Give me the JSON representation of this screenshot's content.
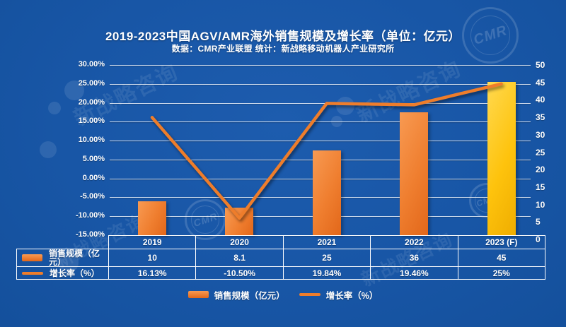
{
  "header": {
    "title": "2019-2023中国AGV/AMR海外销售规模及增长率（单位：亿元）",
    "subtitle": "数据：CMR产业联盟    统计：新战略移动机器人产业研究所"
  },
  "chart_data": {
    "type": "bar",
    "subtype": "combo-bar-line",
    "title": "2019-2023中国AGV/AMR海外销售规模及增长率（单位：亿元）",
    "categories": [
      "2019",
      "2020",
      "2021",
      "2022",
      "2023 (F)"
    ],
    "series": [
      {
        "name": "销售规模（亿元）",
        "type": "bar",
        "axis": "right",
        "values": [
          10,
          8.1,
          25,
          36,
          45
        ],
        "color": "#ED7D31",
        "colors": [
          "#ED7D31",
          "#ED7D31",
          "#ED7D31",
          "#ED7D31",
          "#FFC408"
        ]
      },
      {
        "name": "增长率（%）",
        "type": "line",
        "axis": "left",
        "values": [
          16.13,
          -10.5,
          19.84,
          19.46,
          25
        ],
        "color": "#ED7D31"
      }
    ],
    "left_axis": {
      "min": -15,
      "max": 30,
      "step": 5,
      "ticks": [
        "30.00%",
        "25.00%",
        "20.00%",
        "15.00%",
        "10.00%",
        "5.00%",
        "0.00%",
        "-5.00%",
        "-10.00%",
        "-15.00%"
      ]
    },
    "right_axis": {
      "min": 0,
      "max": 50,
      "step": 5,
      "ticks": [
        "50",
        "45",
        "40",
        "35",
        "30",
        "25",
        "20",
        "15",
        "10",
        "5",
        "0"
      ]
    },
    "grid": true,
    "legend_position": "bottom"
  },
  "table": {
    "years": [
      "2019",
      "2020",
      "2021",
      "2022",
      "2023 (F)"
    ],
    "rows": [
      {
        "label": "销售规模（亿元）",
        "swatch": "bar",
        "values": [
          "10",
          "8.1",
          "25",
          "36",
          "45"
        ]
      },
      {
        "label": "增长率（%）",
        "swatch": "line",
        "values": [
          "16.13%",
          "-10.50%",
          "19.84%",
          "19.46%",
          "25%"
        ]
      }
    ]
  },
  "legend": {
    "items": [
      {
        "label": "销售规模（亿元）",
        "swatch": "bar"
      },
      {
        "label": "增长率（%）",
        "swatch": "line"
      }
    ]
  },
  "watermarks": {
    "text": "新战略咨询",
    "stamp_label": "CMR",
    "colors": {
      "background": "#1A57A8",
      "grid": "#FFFFFF",
      "orange": "#ED7D31",
      "gold": "#FFC408"
    }
  }
}
